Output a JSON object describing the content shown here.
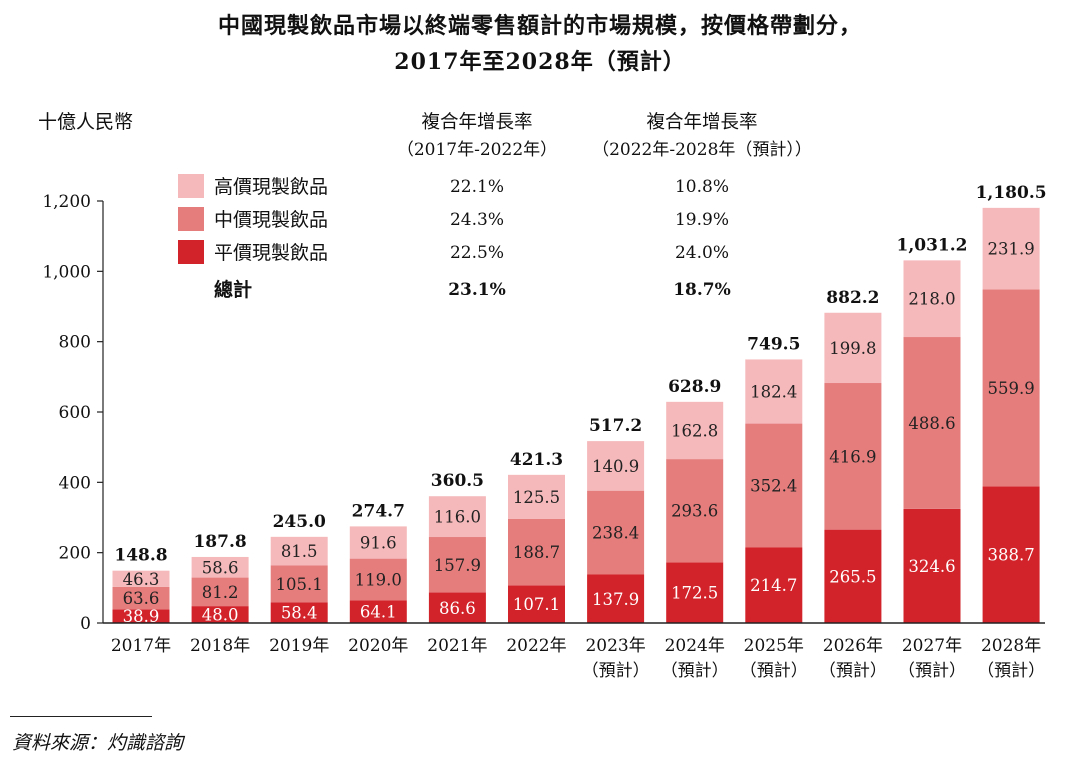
{
  "chart_data": {
    "type": "bar",
    "stacked": true,
    "title": "中國現製飲品市場以終端零售額計的市場規模，按價格帶劃分，",
    "subtitle": "2017年至2028年（預計）",
    "ylabel": "十億人民幣",
    "ylim": [
      0,
      1200
    ],
    "yticks": [
      "0",
      "200",
      "400",
      "600",
      "800",
      "1,000",
      "1,200"
    ],
    "ytick_values": [
      0,
      200,
      400,
      600,
      800,
      1000,
      1200
    ],
    "categories": [
      "2017年",
      "2018年",
      "2019年",
      "2020年",
      "2021年",
      "2022年",
      "2023年",
      "2024年",
      "2025年",
      "2026年",
      "2027年",
      "2028年"
    ],
    "category_notes": [
      "",
      "",
      "",
      "",
      "",
      "",
      "（預計）",
      "（預計）",
      "（預計）",
      "（預計）",
      "（預計）",
      "（預計）"
    ],
    "series": [
      {
        "name": "平價現製飲品",
        "color": "#d2232a",
        "label_color": "#ffffff",
        "values": [
          38.9,
          48.0,
          58.4,
          64.1,
          86.6,
          107.1,
          137.9,
          172.5,
          214.7,
          265.5,
          324.6,
          388.7
        ],
        "labels": [
          "38.9",
          "48.0",
          "58.4",
          "64.1",
          "86.6",
          "107.1",
          "137.9",
          "172.5",
          "214.7",
          "265.5",
          "324.6",
          "388.7"
        ]
      },
      {
        "name": "中價現製飲品",
        "color": "#e57d7d",
        "label_color": "#222222",
        "values": [
          63.6,
          81.2,
          105.1,
          119.0,
          157.9,
          188.7,
          238.4,
          293.6,
          352.4,
          416.9,
          488.6,
          559.9
        ],
        "labels": [
          "63.6",
          "81.2",
          "105.1",
          "119.0",
          "157.9",
          "188.7",
          "238.4",
          "293.6",
          "352.4",
          "416.9",
          "488.6",
          "559.9"
        ]
      },
      {
        "name": "高價現製飲品",
        "color": "#f5b9bb",
        "label_color": "#222222",
        "values": [
          46.3,
          58.6,
          81.5,
          91.6,
          116.0,
          125.5,
          140.9,
          162.8,
          182.4,
          199.8,
          218.0,
          231.9
        ],
        "labels": [
          "46.3",
          "58.6",
          "81.5",
          "91.6",
          "116.0",
          "125.5",
          "140.9",
          "162.8",
          "182.4",
          "199.8",
          "218.0",
          "231.9"
        ]
      }
    ],
    "totals": [
      148.8,
      187.8,
      245.0,
      274.7,
      360.5,
      421.3,
      517.2,
      628.9,
      749.5,
      882.2,
      1031.2,
      1180.5
    ],
    "total_labels": [
      "148.8",
      "187.8",
      "245.0",
      "274.7",
      "360.5",
      "421.3",
      "517.2",
      "628.9",
      "749.5",
      "882.2",
      "1,031.2",
      "1,180.5"
    ],
    "cagr_table": {
      "headers": [
        {
          "line1": "複合年增長率",
          "line2": "（2017年-2022年）"
        },
        {
          "line1": "複合年增長率",
          "line2": "（2022年-2028年（預計））"
        }
      ],
      "rows": [
        {
          "name": "高價現製飲品",
          "swatch": "#f5b9bb",
          "cagr1": "22.1%",
          "cagr2": "10.8%"
        },
        {
          "name": "中價現製飲品",
          "swatch": "#e57d7d",
          "cagr1": "24.3%",
          "cagr2": "19.9%"
        },
        {
          "name": "平價現製飲品",
          "swatch": "#d2232a",
          "cagr1": "22.5%",
          "cagr2": "24.0%"
        },
        {
          "name": "總計",
          "swatch": "",
          "cagr1": "23.1%",
          "cagr2": "18.7%",
          "bold": true
        }
      ]
    }
  },
  "source": "資料來源：灼識諮詢"
}
